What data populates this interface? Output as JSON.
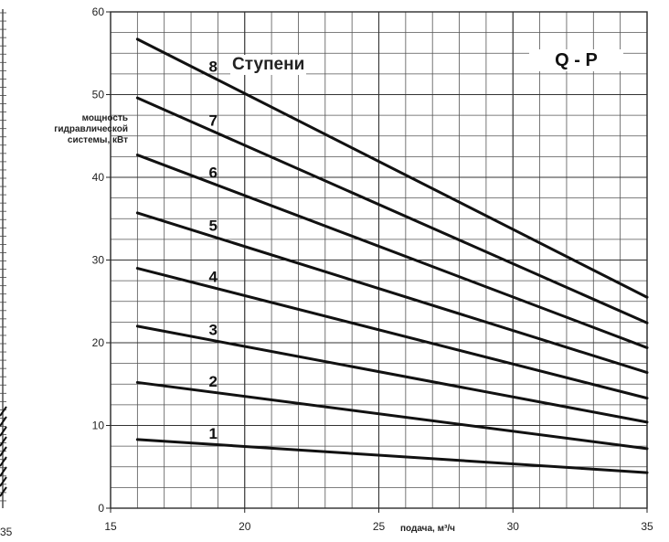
{
  "chart_data": {
    "type": "line",
    "title": "Q - P",
    "legend_title": "Ступени",
    "xlabel": "подача, м³/ч",
    "ylabel": [
      "мощность",
      "гидравлической",
      "системы, кВт"
    ],
    "xlim": [
      15,
      35
    ],
    "ylim": [
      0,
      60
    ],
    "x_ticks": [
      "15",
      "20",
      "25",
      "30",
      "35"
    ],
    "y_ticks": [
      "0",
      "10",
      "20",
      "30",
      "40",
      "50",
      "60"
    ],
    "grid": true,
    "series": [
      {
        "name": "1",
        "x": [
          16,
          35
        ],
        "y": [
          8.3,
          4.3
        ]
      },
      {
        "name": "2",
        "x": [
          16,
          35
        ],
        "y": [
          15.2,
          7.2
        ]
      },
      {
        "name": "3",
        "x": [
          16,
          35
        ],
        "y": [
          22.0,
          10.4
        ]
      },
      {
        "name": "4",
        "x": [
          16,
          35
        ],
        "y": [
          29.0,
          13.3
        ]
      },
      {
        "name": "5",
        "x": [
          16,
          35
        ],
        "y": [
          35.7,
          16.4
        ]
      },
      {
        "name": "6",
        "x": [
          16,
          35
        ],
        "y": [
          42.7,
          19.4
        ]
      },
      {
        "name": "7",
        "x": [
          16,
          35
        ],
        "y": [
          49.6,
          22.4
        ]
      },
      {
        "name": "8",
        "x": [
          16,
          35
        ],
        "y": [
          56.7,
          25.5
        ]
      }
    ]
  },
  "edge_tick": "35"
}
